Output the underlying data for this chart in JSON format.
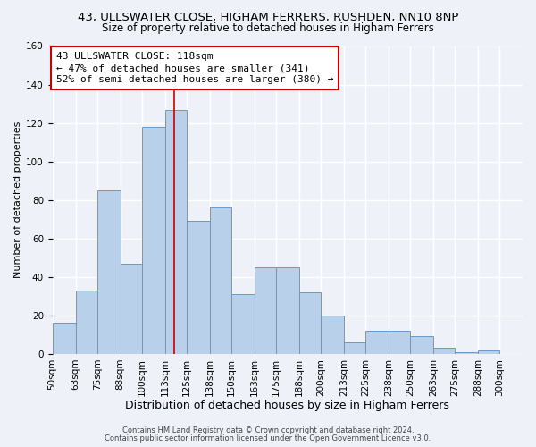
{
  "title1": "43, ULLSWATER CLOSE, HIGHAM FERRERS, RUSHDEN, NN10 8NP",
  "title2": "Size of property relative to detached houses in Higham Ferrers",
  "xlabel": "Distribution of detached houses by size in Higham Ferrers",
  "ylabel": "Number of detached properties",
  "bar_labels": [
    "50sqm",
    "63sqm",
    "75sqm",
    "88sqm",
    "100sqm",
    "113sqm",
    "125sqm",
    "138sqm",
    "150sqm",
    "163sqm",
    "175sqm",
    "188sqm",
    "200sqm",
    "213sqm",
    "225sqm",
    "238sqm",
    "250sqm",
    "263sqm",
    "275sqm",
    "288sqm",
    "300sqm"
  ],
  "bar_edges": [
    50,
    63,
    75,
    88,
    100,
    113,
    125,
    138,
    150,
    163,
    175,
    188,
    200,
    213,
    225,
    238,
    250,
    263,
    275,
    288,
    300,
    313
  ],
  "bar_heights": [
    16,
    33,
    85,
    47,
    118,
    127,
    69,
    76,
    31,
    45,
    45,
    32,
    20,
    6,
    12,
    12,
    9,
    3,
    1,
    2,
    0
  ],
  "bar_color": "#b8d0ea",
  "bar_edgecolor": "#6699cc",
  "bg_color": "#eef2f8",
  "grid_color": "#ffffff",
  "vline_x": 118,
  "vline_color": "#cc0000",
  "annotation_title": "43 ULLSWATER CLOSE: 118sqm",
  "annotation_line2": "← 47% of detached houses are smaller (341)",
  "annotation_line3": "52% of semi-detached houses are larger (380) →",
  "annotation_box_edgecolor": "#cc0000",
  "ylim": [
    0,
    160
  ],
  "yticks": [
    0,
    20,
    40,
    60,
    80,
    100,
    120,
    140,
    160
  ],
  "footer1": "Contains HM Land Registry data © Crown copyright and database right 2024.",
  "footer2": "Contains public sector information licensed under the Open Government Licence v3.0.",
  "title1_fontsize": 9.5,
  "title2_fontsize": 8.5,
  "xlabel_fontsize": 9,
  "ylabel_fontsize": 8,
  "tick_fontsize": 7.5,
  "annotation_fontsize": 8,
  "footer_fontsize": 6
}
